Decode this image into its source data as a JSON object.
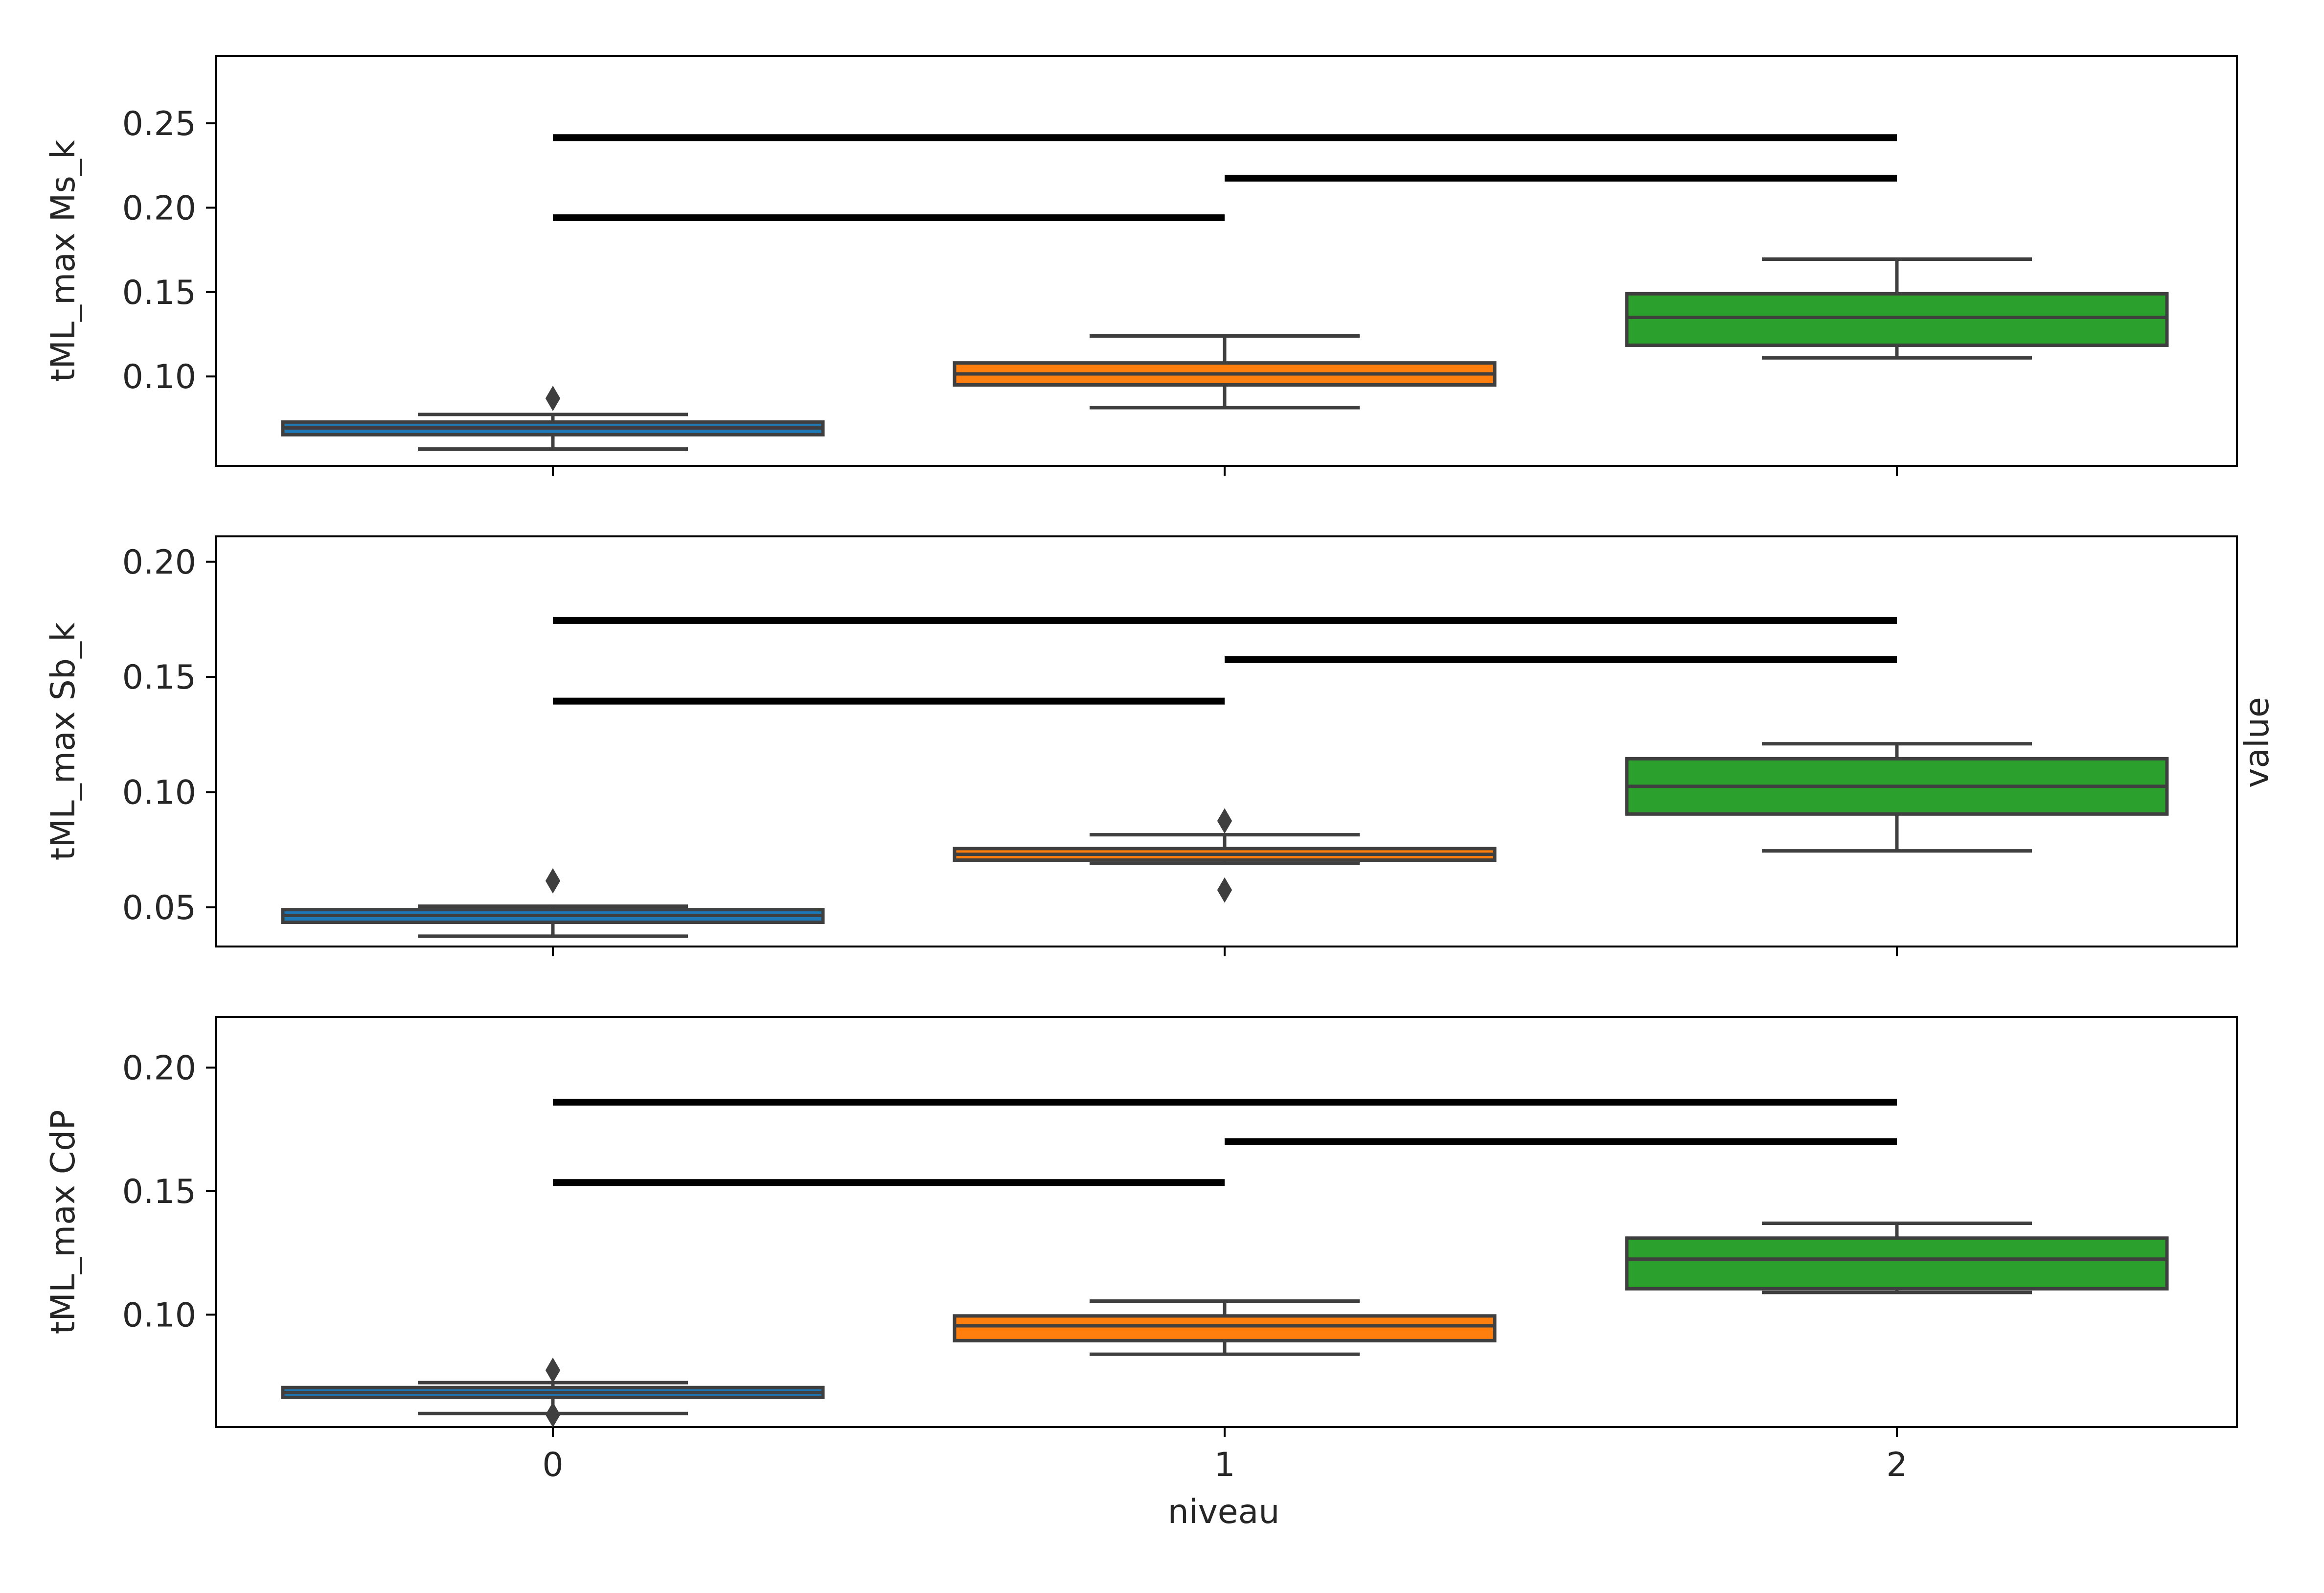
{
  "chart_data": [
    {
      "type": "box",
      "ylabel": "tML_max Ms_k",
      "ylim": [
        0.047,
        0.29
      ],
      "yticks": [
        0.1,
        0.15,
        0.2,
        0.25
      ],
      "ytick_labels": [
        "0.10",
        "0.15",
        "0.20",
        "0.25"
      ],
      "show_xtick_labels": false,
      "boxes": [
        {
          "category": "0",
          "whisker_low": 0.057,
          "q1": 0.0655,
          "median": 0.0695,
          "q3": 0.073,
          "whisker_high": 0.0775,
          "outliers": [
            0.087
          ],
          "color": "#1f77b4"
        },
        {
          "category": "1",
          "whisker_low": 0.0815,
          "q1": 0.095,
          "median": 0.1015,
          "q3": 0.108,
          "whisker_high": 0.124,
          "outliers": [],
          "color": "#ff7f0e"
        },
        {
          "category": "2",
          "whisker_low": 0.111,
          "q1": 0.1185,
          "median": 0.135,
          "q3": 0.149,
          "whisker_high": 0.1695,
          "outliers": [],
          "color": "#2ca02c"
        }
      ],
      "brackets": [
        {
          "from": "0",
          "to": "2",
          "y": 0.2415
        },
        {
          "from": "1",
          "to": "2",
          "y": 0.2175
        },
        {
          "from": "0",
          "to": "1",
          "y": 0.194
        }
      ]
    },
    {
      "type": "box",
      "ylabel": "tML_max Sb_k",
      "ylim": [
        0.033,
        0.211
      ],
      "yticks": [
        0.05,
        0.1,
        0.15,
        0.2
      ],
      "ytick_labels": [
        "0.05",
        "0.10",
        "0.15",
        "0.20"
      ],
      "show_xtick_labels": false,
      "boxes": [
        {
          "category": "0",
          "whisker_low": 0.0375,
          "q1": 0.0435,
          "median": 0.0465,
          "q3": 0.049,
          "whisker_high": 0.0505,
          "outliers": [
            0.0615
          ],
          "color": "#1f77b4"
        },
        {
          "category": "1",
          "whisker_low": 0.069,
          "q1": 0.0705,
          "median": 0.073,
          "q3": 0.0755,
          "whisker_high": 0.0815,
          "outliers": [
            0.0875,
            0.0575
          ],
          "color": "#ff7f0e"
        },
        {
          "category": "2",
          "whisker_low": 0.0745,
          "q1": 0.0905,
          "median": 0.1025,
          "q3": 0.1145,
          "whisker_high": 0.121,
          "outliers": [],
          "color": "#2ca02c"
        }
      ],
      "brackets": [
        {
          "from": "0",
          "to": "2",
          "y": 0.1745
        },
        {
          "from": "1",
          "to": "2",
          "y": 0.1575
        },
        {
          "from": "0",
          "to": "1",
          "y": 0.1395
        }
      ]
    },
    {
      "type": "box",
      "ylabel": "tML_max CdP",
      "ylim": [
        0.0545,
        0.2205
      ],
      "yticks": [
        0.1,
        0.15,
        0.2
      ],
      "ytick_labels": [
        "0.10",
        "0.15",
        "0.20"
      ],
      "show_xtick_labels": true,
      "xlabel": "niveau",
      "boxes": [
        {
          "category": "0",
          "whisker_low": 0.06,
          "q1": 0.0665,
          "median": 0.0685,
          "q3": 0.0705,
          "whisker_high": 0.0725,
          "outliers": [
            0.0775,
            0.0595
          ],
          "color": "#1f77b4"
        },
        {
          "category": "1",
          "whisker_low": 0.084,
          "q1": 0.0895,
          "median": 0.0955,
          "q3": 0.0995,
          "whisker_high": 0.1055,
          "outliers": [],
          "color": "#ff7f0e"
        },
        {
          "category": "2",
          "whisker_low": 0.109,
          "q1": 0.1105,
          "median": 0.1225,
          "q3": 0.131,
          "whisker_high": 0.137,
          "outliers": [],
          "color": "#2ca02c"
        }
      ],
      "brackets": [
        {
          "from": "0",
          "to": "2",
          "y": 0.186
        },
        {
          "from": "1",
          "to": "2",
          "y": 0.17
        },
        {
          "from": "0",
          "to": "1",
          "y": 0.1535
        }
      ]
    }
  ],
  "categories": [
    "0",
    "1",
    "2"
  ],
  "xlabel": "niveau",
  "right_label": "value",
  "colors": {
    "box_edge": "#3f3f3f",
    "bracket": "#000000",
    "axis": "#000000"
  }
}
